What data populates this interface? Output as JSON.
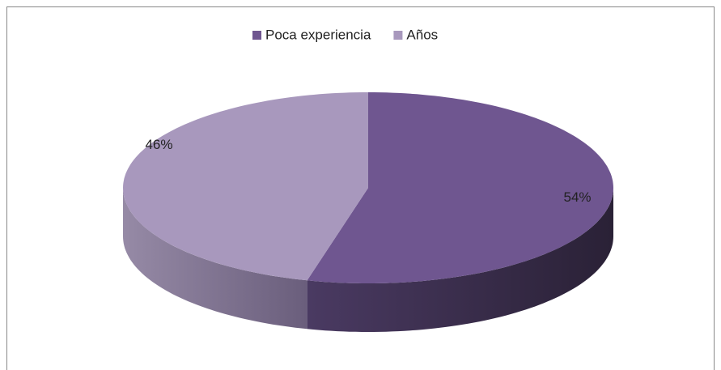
{
  "chart_data": {
    "type": "pie",
    "categories": [
      "Poca experiencia",
      "Años"
    ],
    "values": [
      54,
      46
    ],
    "value_labels": [
      "54%",
      "46%"
    ],
    "colors": [
      "#6f5690",
      "#a898bd"
    ],
    "legend": "top"
  }
}
